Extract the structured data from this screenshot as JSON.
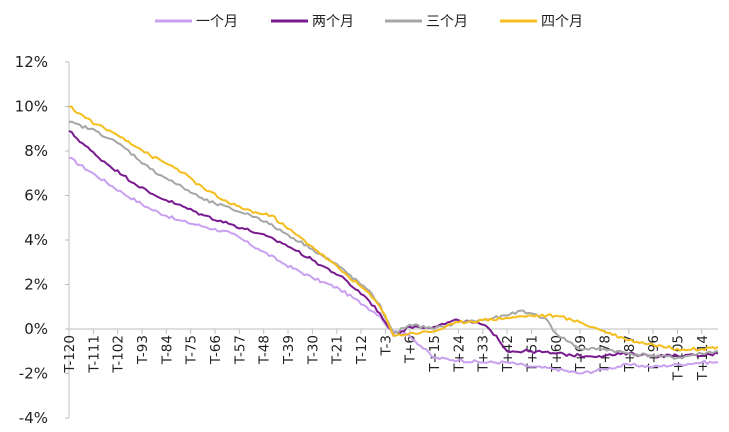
{
  "chart_data": {
    "type": "line",
    "title": "",
    "xlabel": "",
    "ylabel": "",
    "ylim": [
      -4,
      12
    ],
    "yticks": [
      12,
      10,
      8,
      6,
      4,
      2,
      0,
      -2,
      -4
    ],
    "ytick_labels": [
      "12%",
      "10%",
      "8%",
      "6%",
      "4%",
      "2%",
      "0%",
      "-2%",
      "-4%"
    ],
    "xlim": [
      -120,
      120
    ],
    "xticks": [
      -120,
      -111,
      -102,
      -93,
      -84,
      -75,
      -66,
      -57,
      -48,
      -39,
      -30,
      -21,
      -12,
      -3,
      6,
      15,
      24,
      33,
      42,
      51,
      60,
      69,
      78,
      87,
      96,
      105,
      114
    ],
    "xtick_labels": [
      "T-120",
      "T-111",
      "T-102",
      "T-93",
      "T-84",
      "T-75",
      "T-66",
      "T-57",
      "T-48",
      "T-39",
      "T-30",
      "T-21",
      "T-12",
      "T-3",
      "T+6",
      "T+15",
      "T+24",
      "T+33",
      "T+42",
      "T+51",
      "T+60",
      "T+69",
      "T+78",
      "T+87",
      "T+96",
      "T+105",
      "T+114"
    ],
    "legend_position": "top-center",
    "series": [
      {
        "name": "一个月",
        "color": "#c9a0f0",
        "x": [
          -120,
          -110,
          -100,
          -90,
          -80,
          -70,
          -60,
          -50,
          -40,
          -30,
          -20,
          -10,
          -5,
          -3,
          0,
          6,
          15,
          24,
          33,
          42,
          51,
          60,
          69,
          78,
          87,
          96,
          105,
          114,
          120
        ],
        "values": [
          7.7,
          6.9,
          6.1,
          5.4,
          4.9,
          4.6,
          4.3,
          3.6,
          2.9,
          2.3,
          1.8,
          1.0,
          0.6,
          0.2,
          -0.1,
          -0.3,
          -1.3,
          -1.4,
          -1.5,
          -1.5,
          -1.7,
          -1.8,
          -2.0,
          -1.8,
          -1.6,
          -1.7,
          -1.6,
          -1.5,
          -1.5
        ]
      },
      {
        "name": "两个月",
        "color": "#7a1a8f",
        "x": [
          -120,
          -110,
          -100,
          -90,
          -80,
          -70,
          -60,
          -50,
          -40,
          -30,
          -20,
          -10,
          -5,
          -3,
          0,
          6,
          15,
          24,
          33,
          38,
          42,
          51,
          60,
          69,
          78,
          87,
          96,
          105,
          114,
          120
        ],
        "values": [
          8.9,
          7.8,
          6.9,
          6.1,
          5.6,
          5.1,
          4.7,
          4.3,
          3.8,
          3.1,
          2.4,
          1.4,
          0.7,
          0.3,
          -0.3,
          0.1,
          0.1,
          0.4,
          0.2,
          -0.3,
          -1.0,
          -1.0,
          -1.1,
          -1.2,
          -1.2,
          -1.1,
          -1.2,
          -1.2,
          -1.2,
          -1.1
        ]
      },
      {
        "name": "三个月",
        "color": "#a6a6a6",
        "x": [
          -120,
          -110,
          -100,
          -90,
          -80,
          -70,
          -60,
          -50,
          -40,
          -30,
          -20,
          -10,
          -5,
          -3,
          0,
          6,
          15,
          24,
          33,
          42,
          46,
          51,
          56,
          60,
          69,
          78,
          87,
          96,
          105,
          114,
          120
        ],
        "values": [
          9.3,
          8.9,
          8.2,
          7.2,
          6.5,
          5.8,
          5.4,
          5.0,
          4.3,
          3.6,
          2.8,
          1.8,
          1.1,
          0.5,
          -0.2,
          0.2,
          0.0,
          0.3,
          0.4,
          0.6,
          0.8,
          0.7,
          0.5,
          -0.2,
          -0.9,
          -0.9,
          -1.1,
          -1.2,
          -1.3,
          -1.1,
          -1.0
        ]
      },
      {
        "name": "四个月",
        "color": "#f5be1c",
        "x": [
          -120,
          -110,
          -100,
          -90,
          -80,
          -70,
          -60,
          -50,
          -45,
          -40,
          -30,
          -20,
          -10,
          -5,
          -3,
          0,
          6,
          15,
          24,
          33,
          42,
          51,
          60,
          66,
          69,
          78,
          87,
          96,
          105,
          114,
          120
        ],
        "values": [
          10.0,
          9.2,
          8.6,
          7.8,
          7.2,
          6.3,
          5.6,
          5.2,
          5.1,
          4.6,
          3.7,
          2.7,
          1.7,
          1.0,
          0.6,
          -0.3,
          -0.2,
          -0.1,
          0.3,
          0.4,
          0.5,
          0.6,
          0.6,
          0.4,
          0.3,
          -0.1,
          -0.5,
          -0.7,
          -0.9,
          -0.9,
          -0.8
        ]
      }
    ]
  }
}
